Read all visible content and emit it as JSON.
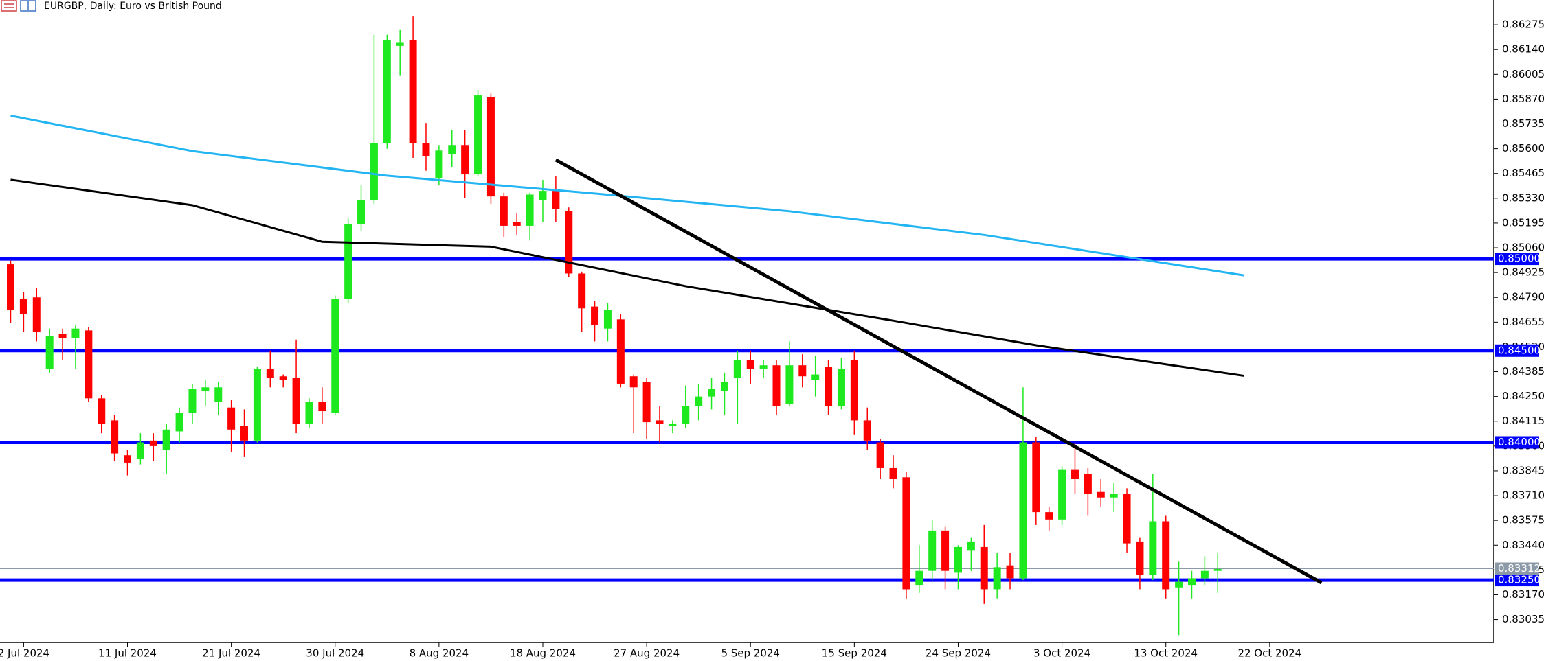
{
  "chart_data": {
    "type": "candlestick",
    "title": "EURGBP, Daily:  Euro vs British Pound",
    "categories": [
      null,
      "2 Jul 2024",
      null,
      null,
      null,
      null,
      null,
      null,
      null,
      "11 Jul 2024",
      null,
      null,
      null,
      null,
      null,
      null,
      null,
      "21 Jul 2024",
      null,
      null,
      null,
      null,
      null,
      null,
      null,
      "30 Jul 2024",
      null,
      null,
      null,
      null,
      null,
      null,
      null,
      "8 Aug 2024",
      null,
      null,
      null,
      null,
      null,
      null,
      null,
      "18 Aug 2024",
      null,
      null,
      null,
      null,
      null,
      null,
      null,
      "27 Aug 2024",
      null,
      null,
      null,
      null,
      null,
      null,
      null,
      "5 Sep 2024",
      null,
      null,
      null,
      null,
      null,
      null,
      null,
      "15 Sep 2024",
      null,
      null,
      null,
      null,
      null,
      null,
      null,
      "24 Sep 2024",
      null,
      null,
      null,
      null,
      null,
      null,
      null,
      "3 Oct 2024",
      null,
      null,
      null,
      null,
      null,
      null,
      null,
      "13 Oct 2024",
      null,
      null,
      null,
      null,
      null,
      null,
      null,
      "22 Oct 2024"
    ],
    "open": [
      0.8497,
      0.8478,
      0.8479,
      0.844,
      0.8459,
      0.8457,
      0.8461,
      0.8424,
      0.8412,
      0.8393,
      0.8391,
      0.8401,
      0.8396,
      0.8406,
      0.8416,
      0.8428,
      0.8422,
      0.8419,
      0.8409,
      0.8401,
      0.844,
      0.8436,
      0.8435,
      0.841,
      0.8422,
      0.8416,
      0.8478,
      0.8519,
      0.8532,
      0.8563,
      0.8616,
      0.8619,
      0.8563,
      0.8544,
      0.8557,
      0.8562,
      0.8546,
      0.8588,
      0.8534,
      0.852,
      0.8518,
      0.8532,
      0.8537,
      0.8526,
      0.8492,
      0.8474,
      0.8462,
      0.8467,
      0.8436,
      0.8433,
      0.8412,
      0.8409,
      0.841,
      0.842,
      0.8425,
      0.8428,
      0.8435,
      0.8445,
      0.844,
      0.8442,
      0.8421,
      0.8442,
      0.8434,
      0.8441,
      0.842,
      0.8445,
      0.8412,
      0.84,
      0.8386,
      0.8381,
      0.8322,
      0.833,
      0.8352,
      0.8329,
      0.8341,
      0.8343,
      0.832,
      0.8333,
      0.8326,
      0.84,
      0.8362,
      0.8358,
      0.8385,
      0.8383,
      0.8373,
      0.837,
      0.8372,
      0.8346,
      0.8328,
      0.8357,
      0.8321,
      0.8322,
      0.8326,
      0.833,
      null,
      null,
      null,
      null
    ],
    "high": [
      0.8499,
      0.8482,
      0.8484,
      0.8462,
      0.8462,
      0.8464,
      0.8463,
      0.8426,
      0.8415,
      0.8396,
      0.8405,
      0.8405,
      0.841,
      0.8419,
      0.8432,
      0.8434,
      0.8433,
      0.8423,
      0.8418,
      0.8441,
      0.845,
      0.8437,
      0.8456,
      0.8424,
      0.843,
      0.848,
      0.8522,
      0.854,
      0.8622,
      0.8622,
      0.8625,
      0.8632,
      0.8574,
      0.8562,
      0.857,
      0.857,
      0.8592,
      0.859,
      0.8536,
      0.8525,
      0.8536,
      0.8543,
      0.8545,
      0.8528,
      0.8493,
      0.8477,
      0.8476,
      0.847,
      0.8437,
      0.8435,
      0.842,
      0.8412,
      0.8431,
      0.8432,
      0.8435,
      0.8438,
      0.845,
      0.845,
      0.8445,
      0.8445,
      0.8455,
      0.8448,
      0.8447,
      0.8445,
      0.8446,
      0.845,
      0.8419,
      0.8402,
      0.8393,
      0.8384,
      0.8344,
      0.8358,
      0.8354,
      0.8344,
      0.8348,
      0.8355,
      0.834,
      0.834,
      0.843,
      0.8403,
      0.8365,
      0.8387,
      0.84,
      0.8386,
      0.838,
      0.8378,
      0.8375,
      0.8348,
      0.8383,
      0.836,
      0.8335,
      0.833,
      0.8338,
      0.834,
      null,
      null,
      null,
      null
    ],
    "low": [
      0.8465,
      0.846,
      0.8455,
      0.8438,
      0.8445,
      0.844,
      0.8422,
      0.8405,
      0.839,
      0.8382,
      0.8388,
      0.839,
      0.8383,
      0.84,
      0.841,
      0.842,
      0.8415,
      0.8395,
      0.8392,
      0.84,
      0.843,
      0.843,
      0.8405,
      0.8408,
      0.841,
      0.8415,
      0.8476,
      0.8515,
      0.853,
      0.856,
      0.86,
      0.8555,
      0.8548,
      0.854,
      0.855,
      0.8533,
      0.8545,
      0.853,
      0.8512,
      0.8513,
      0.851,
      0.852,
      0.852,
      0.849,
      0.846,
      0.8455,
      0.8455,
      0.843,
      0.8405,
      0.8402,
      0.84,
      0.8405,
      0.8408,
      0.8412,
      0.8418,
      0.8415,
      0.841,
      0.8432,
      0.8435,
      0.8415,
      0.842,
      0.843,
      0.8425,
      0.8415,
      0.8418,
      0.8404,
      0.8396,
      0.838,
      0.8375,
      0.8315,
      0.8318,
      0.8325,
      0.832,
      0.832,
      0.833,
      0.8312,
      0.8315,
      0.832,
      0.8325,
      0.8355,
      0.8352,
      0.8355,
      0.8372,
      0.836,
      0.8365,
      0.8362,
      0.834,
      0.832,
      0.8325,
      0.8315,
      0.8295,
      0.8315,
      0.8322,
      0.8318,
      null,
      null,
      null,
      null
    ],
    "close": [
      0.8472,
      0.847,
      0.846,
      0.8458,
      0.8457,
      0.8462,
      0.8424,
      0.841,
      0.8394,
      0.8389,
      0.84,
      0.8398,
      0.8407,
      0.8416,
      0.8429,
      0.843,
      0.843,
      0.8407,
      0.8401,
      0.844,
      0.8435,
      0.8434,
      0.841,
      0.8422,
      0.8417,
      0.8478,
      0.8519,
      0.8532,
      0.8563,
      0.8619,
      0.8618,
      0.8563,
      0.8556,
      0.8559,
      0.8562,
      0.8546,
      0.8589,
      0.8534,
      0.8518,
      0.8518,
      0.8535,
      0.8537,
      0.8527,
      0.8492,
      0.8473,
      0.8464,
      0.8472,
      0.8432,
      0.843,
      0.8411,
      0.841,
      0.841,
      0.842,
      0.8425,
      0.8429,
      0.8433,
      0.8445,
      0.844,
      0.8442,
      0.842,
      0.8442,
      0.8436,
      0.8437,
      0.842,
      0.844,
      0.8412,
      0.8401,
      0.8386,
      0.838,
      0.832,
      0.833,
      0.8352,
      0.833,
      0.8343,
      0.8346,
      0.832,
      0.8332,
      0.8326,
      0.84,
      0.8362,
      0.8358,
      0.8385,
      0.838,
      0.8372,
      0.837,
      0.8372,
      0.8345,
      0.8328,
      0.8357,
      0.832,
      0.8324,
      0.8326,
      0.833,
      0.8331,
      null,
      null,
      null,
      null
    ],
    "up_color": "#1ee81e",
    "down_color": "#ff0000",
    "ylim": [
      0.8291,
      0.8641
    ],
    "yticks": [
      {
        "value": 0.86275,
        "label": "0.86275"
      },
      {
        "value": 0.8614,
        "label": "0.86140"
      },
      {
        "value": 0.86005,
        "label": "0.86005"
      },
      {
        "value": 0.8587,
        "label": "0.85870"
      },
      {
        "value": 0.85735,
        "label": "0.85735"
      },
      {
        "value": 0.856,
        "label": "0.85600"
      },
      {
        "value": 0.85465,
        "label": "0.85465"
      },
      {
        "value": 0.8533,
        "label": "0.85330"
      },
      {
        "value": 0.85195,
        "label": "0.85195"
      },
      {
        "value": 0.8506,
        "label": "0.85060"
      },
      {
        "value": 0.84925,
        "label": "0.84925"
      },
      {
        "value": 0.8479,
        "label": "0.84790"
      },
      {
        "value": 0.84655,
        "label": "0.84655"
      },
      {
        "value": 0.8452,
        "label": "0.84520"
      },
      {
        "value": 0.84385,
        "label": "0.84385"
      },
      {
        "value": 0.8425,
        "label": "0.84250"
      },
      {
        "value": 0.84115,
        "label": "0.84115"
      },
      {
        "value": 0.8398,
        "label": "0.83980"
      },
      {
        "value": 0.83845,
        "label": "0.83845"
      },
      {
        "value": 0.8371,
        "label": "0.83710"
      },
      {
        "value": 0.83575,
        "label": "0.83575"
      },
      {
        "value": 0.8344,
        "label": "0.83440"
      },
      {
        "value": 0.83305,
        "label": "0.83305"
      },
      {
        "value": 0.8317,
        "label": "0.83170"
      },
      {
        "value": 0.83035,
        "label": "0.83035"
      }
    ],
    "current_price": {
      "value": 0.83312,
      "label": "0.83312",
      "color": "#8c9aa8"
    },
    "levels": [
      {
        "value": 0.85,
        "label": "0.85000"
      },
      {
        "value": 0.845,
        "label": "0.84500"
      },
      {
        "value": 0.84,
        "label": "0.84000"
      },
      {
        "value": 0.8325,
        "label": "0.83250"
      }
    ],
    "level_color": "#0000ff",
    "overlays": [
      {
        "type": "line",
        "color": "#22b5f2",
        "x": [
          0,
          14,
          29,
          45,
          60,
          75,
          95
        ],
        "values": [
          0.8578,
          0.85587,
          0.85453,
          0.85356,
          0.85259,
          0.8513,
          0.8491
        ]
      },
      {
        "type": "line",
        "color": "#000000",
        "x": [
          0,
          14,
          24,
          37,
          52,
          68,
          79,
          95
        ],
        "values": [
          0.85431,
          0.85292,
          0.85093,
          0.85066,
          0.84851,
          0.84663,
          0.84529,
          0.84363
        ]
      },
      {
        "type": "line",
        "color": "#000000",
        "x": [
          42,
          101
        ],
        "values": [
          0.85539,
          0.83235
        ]
      }
    ]
  }
}
